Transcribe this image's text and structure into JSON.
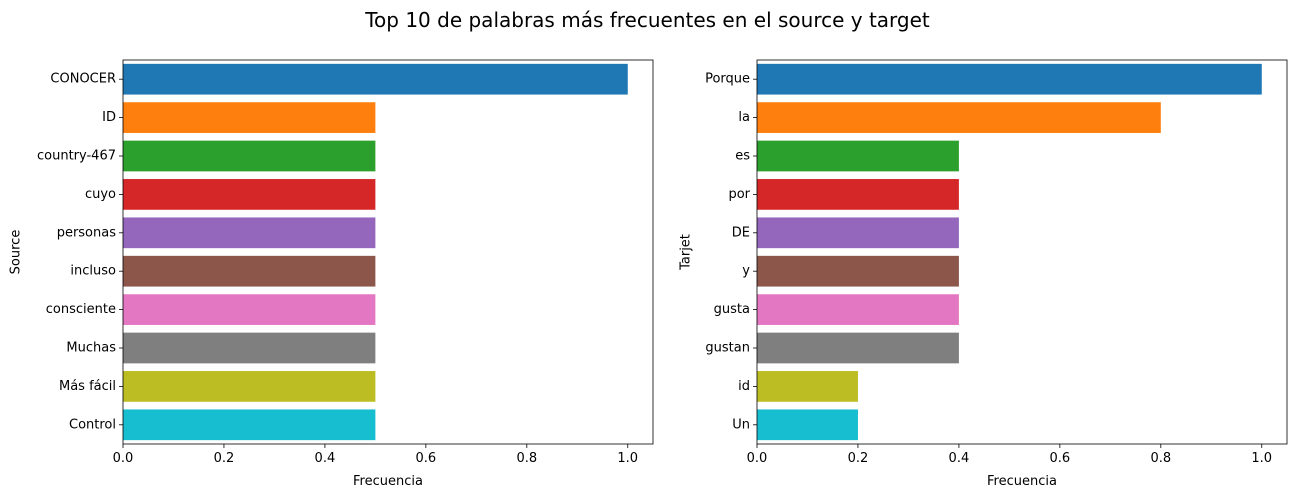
{
  "suptitle": "Top 10 de palabras más frecuentes en el source y target",
  "palette": [
    "#1f77b4",
    "#ff7f0e",
    "#2ca02c",
    "#d62728",
    "#9467bd",
    "#8c564b",
    "#e377c2",
    "#7f7f7f",
    "#bcbd22",
    "#17becf"
  ],
  "chart_data": [
    {
      "type": "bar",
      "orientation": "horizontal",
      "title": "",
      "xlabel": "Frecuencia",
      "ylabel": "Source",
      "xlim": [
        0,
        1.05
      ],
      "xticks": [
        0.0,
        0.2,
        0.4,
        0.6,
        0.8,
        1.0
      ],
      "xtick_labels": [
        "0.0",
        "0.2",
        "0.4",
        "0.6",
        "0.8",
        "1.0"
      ],
      "grid": false,
      "categories": [
        "CONOCER",
        "ID",
        "country-467",
        "cuyo",
        "personas",
        "incluso",
        "consciente",
        "Muchas",
        "Más fácil",
        "Control"
      ],
      "values": [
        1.0,
        0.5,
        0.5,
        0.5,
        0.5,
        0.5,
        0.5,
        0.5,
        0.5,
        0.5
      ]
    },
    {
      "type": "bar",
      "orientation": "horizontal",
      "title": "",
      "xlabel": "Frecuencia",
      "ylabel": "Tarjet",
      "xlim": [
        0,
        1.05
      ],
      "xticks": [
        0.0,
        0.2,
        0.4,
        0.6,
        0.8,
        1.0
      ],
      "xtick_labels": [
        "0.0",
        "0.2",
        "0.4",
        "0.6",
        "0.8",
        "1.0"
      ],
      "grid": false,
      "categories": [
        "Porque",
        "la",
        "es",
        "por",
        "DE",
        "y",
        "gusta",
        "gustan",
        "id",
        "Un"
      ],
      "values": [
        1.0,
        0.8,
        0.4,
        0.4,
        0.4,
        0.4,
        0.4,
        0.4,
        0.2,
        0.2
      ]
    }
  ]
}
